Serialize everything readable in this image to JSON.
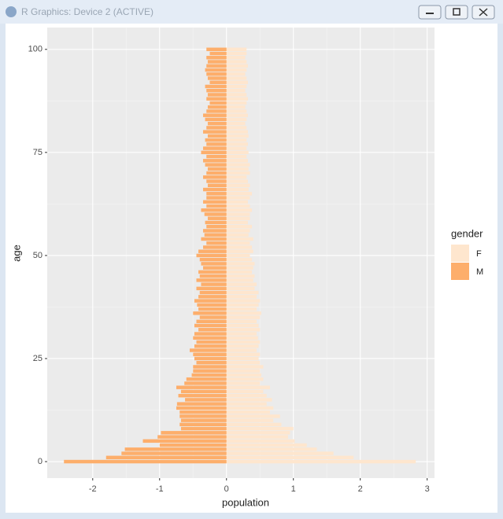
{
  "window": {
    "title": "R Graphics: Device 2 (ACTIVE)"
  },
  "chart_data": {
    "type": "bar",
    "orientation": "horizontal",
    "x_label": "population",
    "y_label": "age",
    "legend_title": "gender",
    "legend_position": "right",
    "grid": true,
    "xlim": [
      -2.68,
      3.11
    ],
    "ylim": [
      -4,
      105.3
    ],
    "xticks": [
      -2,
      -1,
      0,
      1,
      2,
      3
    ],
    "yticks": [
      0,
      25,
      50,
      75,
      100
    ],
    "categories": [
      0,
      1,
      2,
      3,
      4,
      5,
      6,
      7,
      8,
      9,
      10,
      11,
      12,
      13,
      14,
      15,
      16,
      17,
      18,
      19,
      20,
      21,
      22,
      23,
      24,
      25,
      26,
      27,
      28,
      29,
      30,
      31,
      32,
      33,
      34,
      35,
      36,
      37,
      38,
      39,
      40,
      41,
      42,
      43,
      44,
      45,
      46,
      47,
      48,
      49,
      50,
      51,
      52,
      53,
      54,
      55,
      56,
      57,
      58,
      59,
      60,
      61,
      62,
      63,
      64,
      65,
      66,
      67,
      68,
      69,
      70,
      71,
      72,
      73,
      74,
      75,
      76,
      77,
      78,
      79,
      80,
      81,
      82,
      83,
      84,
      85,
      86,
      87,
      88,
      89,
      90,
      91,
      92,
      93,
      94,
      95,
      96,
      97,
      98,
      99,
      100
    ],
    "series": [
      {
        "name": "F",
        "color": "#fee6ce",
        "values": [
          2.83,
          1.9,
          1.6,
          1.35,
          1.2,
          1.02,
          0.92,
          0.95,
          1.0,
          0.82,
          0.7,
          0.8,
          0.65,
          0.7,
          0.6,
          0.68,
          0.6,
          0.55,
          0.65,
          0.5,
          0.55,
          0.52,
          0.5,
          0.55,
          0.5,
          0.48,
          0.5,
          0.45,
          0.48,
          0.5,
          0.47,
          0.45,
          0.5,
          0.48,
          0.45,
          0.5,
          0.52,
          0.45,
          0.48,
          0.5,
          0.45,
          0.48,
          0.42,
          0.45,
          0.4,
          0.42,
          0.38,
          0.4,
          0.42,
          0.38,
          0.35,
          0.4,
          0.38,
          0.35,
          0.4,
          0.33,
          0.35,
          0.38,
          0.32,
          0.35,
          0.35,
          0.38,
          0.35,
          0.32,
          0.35,
          0.38,
          0.33,
          0.35,
          0.32,
          0.3,
          0.35,
          0.33,
          0.35,
          0.32,
          0.3,
          0.33,
          0.3,
          0.32,
          0.3,
          0.33,
          0.32,
          0.3,
          0.28,
          0.3,
          0.32,
          0.3,
          0.28,
          0.3,
          0.32,
          0.3,
          0.28,
          0.3,
          0.32,
          0.3,
          0.28,
          0.3,
          0.32,
          0.3,
          0.28,
          0.3,
          0.3
        ]
      },
      {
        "name": "M",
        "color": "#fdae6b",
        "values": [
          -2.43,
          -1.8,
          -1.57,
          -1.52,
          -1.0,
          -1.25,
          -1.03,
          -0.98,
          -0.68,
          -0.7,
          -0.68,
          -0.7,
          -0.7,
          -0.75,
          -0.74,
          -0.62,
          -0.72,
          -0.68,
          -0.75,
          -0.63,
          -0.6,
          -0.52,
          -0.5,
          -0.5,
          -0.45,
          -0.48,
          -0.5,
          -0.55,
          -0.48,
          -0.45,
          -0.5,
          -0.48,
          -0.42,
          -0.48,
          -0.45,
          -0.4,
          -0.5,
          -0.42,
          -0.44,
          -0.48,
          -0.42,
          -0.4,
          -0.45,
          -0.38,
          -0.45,
          -0.4,
          -0.42,
          -0.35,
          -0.38,
          -0.4,
          -0.45,
          -0.42,
          -0.35,
          -0.3,
          -0.38,
          -0.33,
          -0.35,
          -0.3,
          -0.32,
          -0.28,
          -0.33,
          -0.38,
          -0.3,
          -0.35,
          -0.3,
          -0.3,
          -0.35,
          -0.28,
          -0.3,
          -0.35,
          -0.3,
          -0.28,
          -0.32,
          -0.35,
          -0.3,
          -0.38,
          -0.35,
          -0.3,
          -0.32,
          -0.28,
          -0.35,
          -0.3,
          -0.28,
          -0.32,
          -0.35,
          -0.3,
          -0.28,
          -0.25,
          -0.3,
          -0.28,
          -0.3,
          -0.32,
          -0.25,
          -0.28,
          -0.3,
          -0.32,
          -0.3,
          -0.28,
          -0.3,
          -0.25,
          -0.3
        ]
      }
    ]
  }
}
